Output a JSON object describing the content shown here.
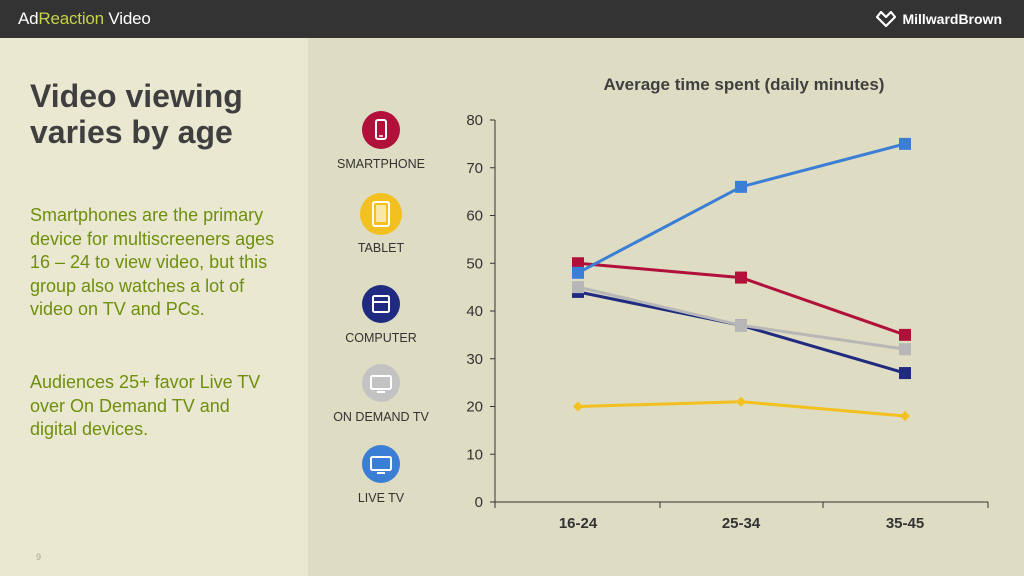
{
  "header": {
    "brand_prefix": "Ad",
    "brand_accent": "Reaction",
    "brand_suffix": " Video",
    "company": "MillwardBrown"
  },
  "slide": {
    "title_line1": "Video viewing",
    "title_line2": "varies by age",
    "paragraph1": "Smartphones are the primary device for multiscreeners ages 16 – 24 to view video, but this group also watches a lot of video on TV and PCs.",
    "paragraph2": "Audiences 25+ favor Live TV over On Demand TV and digital devices.",
    "page_number": "9"
  },
  "legend": [
    {
      "label": "SMARTPHONE",
      "icon": "smartphone-icon",
      "color": "#b0103a"
    },
    {
      "label": "TABLET",
      "icon": "tablet-icon",
      "color": "#f2c01f"
    },
    {
      "label": "COMPUTER",
      "icon": "computer-icon",
      "color": "#1f2a80"
    },
    {
      "label": "ON DEMAND TV",
      "icon": "on-demand-tv-icon",
      "color": "#c0c0c0"
    },
    {
      "label": "LIVE TV",
      "icon": "live-tv-icon",
      "color": "#3a7fd5"
    }
  ],
  "chart_data": {
    "type": "line",
    "title": "Average time spent (daily minutes)",
    "categories": [
      "16-24",
      "25-34",
      "35-45"
    ],
    "ylim": [
      0,
      80
    ],
    "yticks": [
      0,
      10,
      20,
      30,
      40,
      50,
      60,
      70,
      80
    ],
    "xlabel": "",
    "ylabel": "",
    "series": [
      {
        "name": "Smartphone",
        "color": "#b0103a",
        "marker": "square",
        "values": [
          50,
          47,
          35
        ]
      },
      {
        "name": "Tablet",
        "color": "#f2c01f",
        "marker": "diamond",
        "values": [
          20,
          21,
          18
        ]
      },
      {
        "name": "Computer",
        "color": "#1f2a80",
        "marker": "square",
        "values": [
          44,
          37,
          27
        ]
      },
      {
        "name": "On Demand TV",
        "color": "#b7b7b7",
        "marker": "square",
        "values": [
          45,
          37,
          32
        ]
      },
      {
        "name": "Live TV",
        "color": "#3a7fd5",
        "marker": "square",
        "values": [
          48,
          66,
          75
        ]
      }
    ]
  }
}
